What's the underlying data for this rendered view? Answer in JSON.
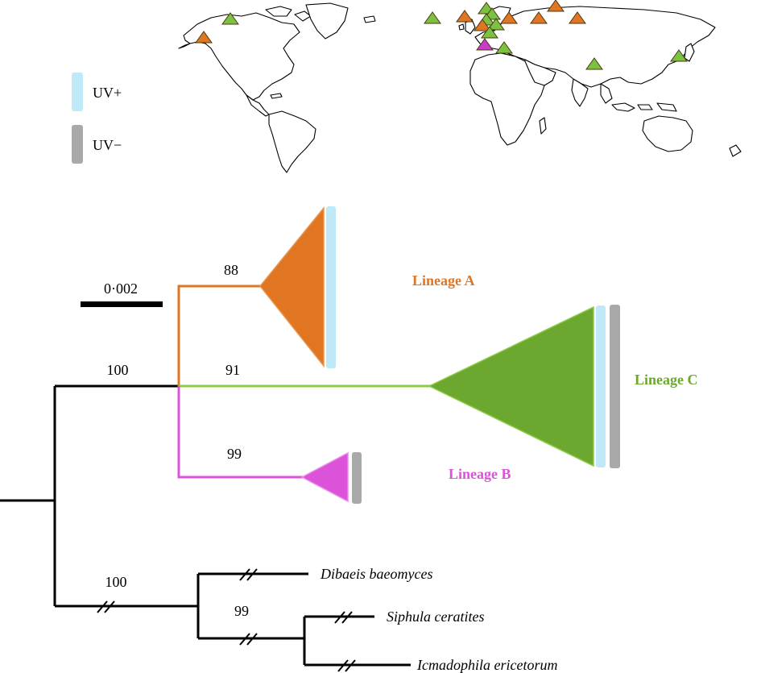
{
  "legend": {
    "uv_plus": "UV+",
    "uv_minus": "UV−",
    "uv_plus_color": "#bfe9f7",
    "uv_minus_color": "#a9a9a9"
  },
  "scale_bar": {
    "label": "0·002"
  },
  "lineages": {
    "a": {
      "label": "Lineage A",
      "color": "#e07522",
      "support": "88"
    },
    "b": {
      "label": "Lineage B",
      "color": "#dc52d8",
      "support": "99"
    },
    "c": {
      "label": "Lineage C",
      "color": "#6ca82f",
      "support": "91"
    }
  },
  "support": {
    "ingroup": "100",
    "outgroup": "100",
    "siphula_icmadophila": "99"
  },
  "outgroups": {
    "dibaeis": "Dibaeis baeomyces",
    "siphula": "Siphula ceratites",
    "icmadophila": "Icmadophila ericetorum"
  },
  "map": {
    "marker_colors": {
      "orange": "#e07522",
      "green": "#7cc242",
      "magenta": "#c83cc8"
    }
  }
}
